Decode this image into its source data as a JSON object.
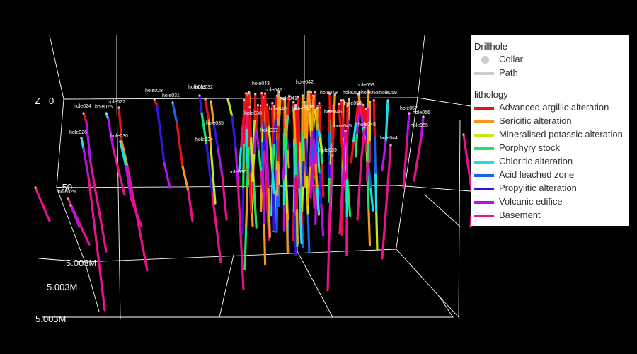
{
  "legend": {
    "group_title": "Drillhole",
    "group_items": [
      {
        "label": "Collar",
        "kind": "marker",
        "color": "#cccccc"
      },
      {
        "label": "Path",
        "kind": "line",
        "color": "#cccccc"
      }
    ],
    "lithology_title": "lithology",
    "lithology_items": [
      {
        "label": "Advanced argillic alteration",
        "color": "#e8101a"
      },
      {
        "label": "Sericitic alteration",
        "color": "#f59a12"
      },
      {
        "label": "Mineralised potassic alteration",
        "color": "#c6e515"
      },
      {
        "label": "Porphyry stock",
        "color": "#1ee36b"
      },
      {
        "label": "Chloritic alteration",
        "color": "#18e0ea"
      },
      {
        "label": "Acid leached zone",
        "color": "#1565ea"
      },
      {
        "label": "Propylitic alteration",
        "color": "#3018e0"
      },
      {
        "label": "Volcanic edifice",
        "color": "#b413e6"
      },
      {
        "label": "Basement",
        "color": "#ea1190"
      }
    ]
  },
  "chart_data": {
    "type": "scatter",
    "mode": "3d",
    "axes": {
      "z": {
        "title": "Z",
        "tick_labels": [
          "0",
          "−50"
        ]
      },
      "y": {
        "tick_labels": [
          "5.003M",
          "5.003M",
          "5.003M"
        ]
      }
    },
    "series": [
      {
        "name": "Collar",
        "type": "marker"
      },
      {
        "name": "Path",
        "type": "line"
      }
    ],
    "hole_labels": [
      "hole024",
      "hole025",
      "hole026",
      "hole027",
      "hole028",
      "hole029",
      "hole030",
      "hole031",
      "hole032",
      "hole033",
      "hole034",
      "hole035",
      "hole036",
      "hole037",
      "hole038",
      "hole039",
      "hole040",
      "hole041",
      "hole042",
      "hole043",
      "hole044",
      "hole045",
      "hole046",
      "hole047",
      "hole048",
      "hole049",
      "hole050",
      "hole051",
      "hole052",
      "hole053",
      "hole054",
      "hole055",
      "hole056",
      "hole057",
      "hole058",
      "hole059"
    ]
  }
}
